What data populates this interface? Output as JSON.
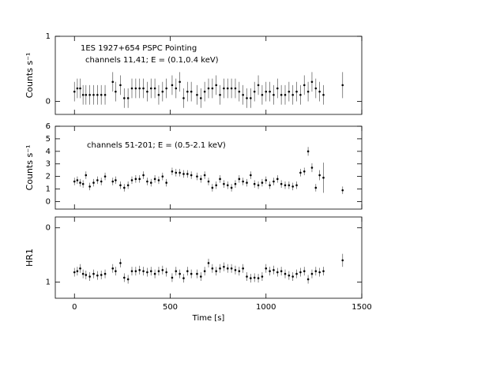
{
  "chart_data": [
    {
      "type": "scatter",
      "ylabel": "Counts s⁻¹",
      "annotations": [
        "1ES 1927+654 PSPC Pointing",
        "channels 11,41; E = (0.1,0.4 keV)"
      ],
      "x": [
        0,
        15,
        30,
        45,
        60,
        80,
        100,
        120,
        140,
        160,
        200,
        215,
        240,
        260,
        280,
        300,
        320,
        340,
        360,
        380,
        400,
        420,
        440,
        460,
        480,
        510,
        530,
        550,
        570,
        590,
        610,
        640,
        660,
        680,
        700,
        720,
        740,
        760,
        780,
        800,
        820,
        840,
        860,
        880,
        900,
        920,
        940,
        960,
        980,
        1000,
        1020,
        1040,
        1060,
        1080,
        1100,
        1120,
        1140,
        1160,
        1180,
        1200,
        1220,
        1240,
        1260,
        1280,
        1300,
        1400
      ],
      "values": [
        0.15,
        0.2,
        0.2,
        0.1,
        0.1,
        0.1,
        0.1,
        0.1,
        0.1,
        0.1,
        0.3,
        0.15,
        0.25,
        0.05,
        0.05,
        0.2,
        0.2,
        0.2,
        0.2,
        0.15,
        0.2,
        0.2,
        0.1,
        0.15,
        0.2,
        0.25,
        0.2,
        0.3,
        0.05,
        0.15,
        0.15,
        0.1,
        0.05,
        0.15,
        0.2,
        0.2,
        0.25,
        0.1,
        0.2,
        0.2,
        0.2,
        0.2,
        0.15,
        0.1,
        0.05,
        0.05,
        0.15,
        0.25,
        0.1,
        0.15,
        0.15,
        0.1,
        0.2,
        0.1,
        0.1,
        0.15,
        0.1,
        0.15,
        0.1,
        0.25,
        0.15,
        0.3,
        0.2,
        0.15,
        0.1,
        0.25
      ],
      "errors": [
        0.15,
        0.15,
        0.15,
        0.15,
        0.15,
        0.15,
        0.15,
        0.15,
        0.15,
        0.15,
        0.15,
        0.15,
        0.15,
        0.15,
        0.15,
        0.15,
        0.15,
        0.15,
        0.15,
        0.15,
        0.15,
        0.15,
        0.15,
        0.15,
        0.15,
        0.15,
        0.15,
        0.15,
        0.15,
        0.15,
        0.15,
        0.15,
        0.15,
        0.15,
        0.15,
        0.15,
        0.15,
        0.15,
        0.15,
        0.15,
        0.15,
        0.15,
        0.15,
        0.15,
        0.15,
        0.15,
        0.15,
        0.15,
        0.15,
        0.15,
        0.15,
        0.15,
        0.15,
        0.15,
        0.15,
        0.15,
        0.15,
        0.15,
        0.15,
        0.15,
        0.15,
        0.15,
        0.15,
        0.15,
        0.15,
        0.2
      ],
      "xlim": [
        -100,
        1500
      ],
      "xticks": [
        0,
        500,
        1000,
        1500
      ],
      "ylim": [
        -0.2,
        1
      ],
      "yticks": [
        0,
        1
      ]
    },
    {
      "type": "scatter",
      "ylabel": "Counts s⁻¹",
      "annotations": [
        "channels 51-201; E = (0.5-2.1 keV)"
      ],
      "x": [
        0,
        15,
        30,
        45,
        60,
        80,
        100,
        120,
        140,
        160,
        200,
        215,
        240,
        260,
        280,
        300,
        320,
        340,
        360,
        380,
        400,
        420,
        440,
        460,
        480,
        510,
        530,
        550,
        570,
        590,
        610,
        640,
        660,
        680,
        700,
        720,
        740,
        760,
        780,
        800,
        820,
        840,
        860,
        880,
        900,
        920,
        940,
        960,
        980,
        1000,
        1020,
        1040,
        1060,
        1080,
        1100,
        1120,
        1140,
        1160,
        1180,
        1200,
        1220,
        1240,
        1260,
        1280,
        1300,
        1400
      ],
      "values": [
        1.6,
        1.7,
        1.5,
        1.4,
        2.1,
        1.2,
        1.5,
        1.7,
        1.6,
        2.0,
        1.6,
        1.7,
        1.3,
        1.1,
        1.3,
        1.7,
        1.8,
        1.8,
        2.1,
        1.6,
        1.5,
        1.8,
        1.7,
        2.0,
        1.5,
        2.4,
        2.3,
        2.3,
        2.2,
        2.2,
        2.1,
        2.0,
        1.8,
        2.1,
        1.6,
        1.1,
        1.3,
        1.8,
        1.4,
        1.3,
        1.1,
        1.4,
        1.8,
        1.6,
        1.5,
        2.1,
        1.4,
        1.3,
        1.5,
        1.7,
        1.3,
        1.6,
        1.8,
        1.4,
        1.3,
        1.3,
        1.2,
        1.3,
        2.3,
        2.4,
        4.0,
        2.7,
        1.1,
        2.1,
        1.9,
        0.9
      ],
      "errors": [
        0.3,
        0.3,
        0.3,
        0.3,
        0.3,
        0.3,
        0.3,
        0.3,
        0.3,
        0.3,
        0.3,
        0.3,
        0.3,
        0.3,
        0.3,
        0.3,
        0.3,
        0.3,
        0.3,
        0.3,
        0.3,
        0.3,
        0.3,
        0.3,
        0.3,
        0.3,
        0.3,
        0.3,
        0.3,
        0.3,
        0.3,
        0.3,
        0.3,
        0.3,
        0.3,
        0.3,
        0.3,
        0.3,
        0.3,
        0.3,
        0.3,
        0.3,
        0.3,
        0.3,
        0.3,
        0.3,
        0.3,
        0.3,
        0.3,
        0.3,
        0.3,
        0.3,
        0.3,
        0.3,
        0.3,
        0.3,
        0.3,
        0.3,
        0.3,
        0.3,
        0.35,
        0.35,
        0.3,
        0.4,
        1.2,
        0.3
      ],
      "xlim": [
        -100,
        1500
      ],
      "xticks": [
        0,
        500,
        1000,
        1500
      ],
      "ylim": [
        -0.6,
        6
      ],
      "yticks": [
        0,
        1,
        2,
        3,
        4,
        5,
        6
      ]
    },
    {
      "type": "scatter",
      "ylabel": "HR1",
      "xlabel": "Time [s]",
      "x": [
        0,
        15,
        30,
        45,
        60,
        80,
        100,
        120,
        140,
        160,
        200,
        215,
        240,
        260,
        280,
        300,
        320,
        340,
        360,
        380,
        400,
        420,
        440,
        460,
        480,
        510,
        530,
        550,
        570,
        590,
        610,
        640,
        660,
        680,
        700,
        720,
        740,
        760,
        780,
        800,
        820,
        840,
        860,
        880,
        900,
        920,
        940,
        960,
        980,
        1000,
        1020,
        1040,
        1060,
        1080,
        1100,
        1120,
        1140,
        1160,
        1180,
        1200,
        1220,
        1240,
        1260,
        1280,
        1300,
        1400
      ],
      "values": [
        0.82,
        0.8,
        0.75,
        0.85,
        0.87,
        0.9,
        0.85,
        0.88,
        0.87,
        0.85,
        0.75,
        0.8,
        0.65,
        0.92,
        0.95,
        0.8,
        0.8,
        0.78,
        0.8,
        0.82,
        0.8,
        0.85,
        0.8,
        0.78,
        0.82,
        0.92,
        0.8,
        0.85,
        0.93,
        0.8,
        0.85,
        0.85,
        0.9,
        0.8,
        0.65,
        0.75,
        0.8,
        0.75,
        0.72,
        0.75,
        0.75,
        0.78,
        0.8,
        0.75,
        0.9,
        0.93,
        0.92,
        0.93,
        0.9,
        0.75,
        0.8,
        0.78,
        0.82,
        0.8,
        0.85,
        0.88,
        0.9,
        0.85,
        0.82,
        0.8,
        0.95,
        0.85,
        0.8,
        0.82,
        0.8,
        0.6
      ],
      "errors": [
        0.08,
        0.08,
        0.08,
        0.08,
        0.08,
        0.08,
        0.08,
        0.08,
        0.08,
        0.08,
        0.08,
        0.08,
        0.08,
        0.08,
        0.08,
        0.08,
        0.08,
        0.08,
        0.08,
        0.08,
        0.08,
        0.08,
        0.08,
        0.08,
        0.08,
        0.08,
        0.08,
        0.08,
        0.08,
        0.08,
        0.08,
        0.08,
        0.08,
        0.08,
        0.08,
        0.08,
        0.08,
        0.08,
        0.08,
        0.08,
        0.08,
        0.08,
        0.08,
        0.08,
        0.08,
        0.08,
        0.08,
        0.08,
        0.08,
        0.08,
        0.08,
        0.08,
        0.08,
        0.08,
        0.08,
        0.08,
        0.08,
        0.08,
        0.08,
        0.08,
        0.08,
        0.08,
        0.08,
        0.08,
        0.08,
        0.12
      ],
      "xlim": [
        -100,
        1500
      ],
      "xticks": [
        0,
        500,
        1000,
        1500
      ],
      "ylim": [
        1.3,
        -0.2
      ],
      "yticks": [
        0,
        1
      ]
    }
  ]
}
